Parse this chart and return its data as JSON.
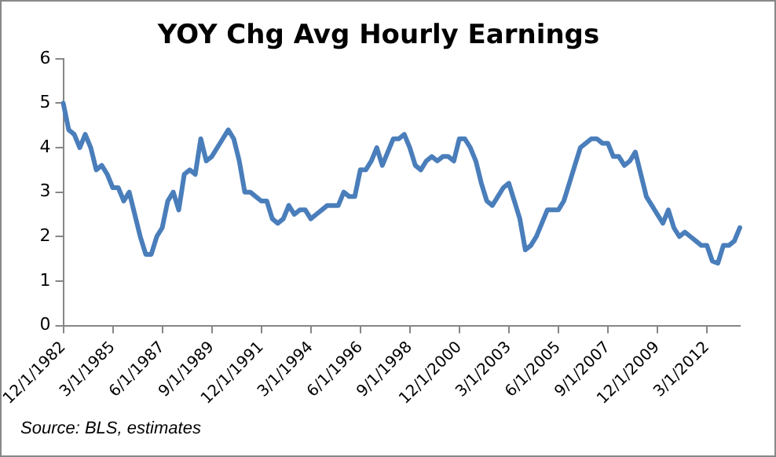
{
  "chart_data": {
    "type": "line",
    "title": "YOY Chg Avg Hourly Earnings",
    "categories": [
      "12/1/1982",
      null,
      null,
      null,
      null,
      null,
      null,
      null,
      null,
      "3/1/1985",
      null,
      null,
      null,
      null,
      null,
      null,
      null,
      null,
      "6/1/1987",
      null,
      null,
      null,
      null,
      null,
      null,
      null,
      null,
      "9/1/1989",
      null,
      null,
      null,
      null,
      null,
      null,
      null,
      null,
      "12/1/1991",
      null,
      null,
      null,
      null,
      null,
      null,
      null,
      null,
      "3/1/1994",
      null,
      null,
      null,
      null,
      null,
      null,
      null,
      null,
      "6/1/1996",
      null,
      null,
      null,
      null,
      null,
      null,
      null,
      null,
      "9/1/1998",
      null,
      null,
      null,
      null,
      null,
      null,
      null,
      null,
      "12/1/2000",
      null,
      null,
      null,
      null,
      null,
      null,
      null,
      null,
      "3/1/2003",
      null,
      null,
      null,
      null,
      null,
      null,
      null,
      null,
      "6/1/2005",
      null,
      null,
      null,
      null,
      null,
      null,
      null,
      null,
      "9/1/2007",
      null,
      null,
      null,
      null,
      null,
      null,
      null,
      null,
      "12/1/2009",
      null,
      null,
      null,
      null,
      null,
      null,
      null,
      null,
      "3/1/2012",
      null,
      null,
      null,
      null,
      null,
      null
    ],
    "series": [
      {
        "color": "#4a7ebb",
        "values": [
          5.0,
          4.4,
          4.3,
          4.0,
          4.3,
          4.0,
          3.5,
          3.6,
          3.4,
          3.1,
          3.1,
          2.8,
          3.0,
          2.5,
          2.0,
          1.6,
          1.6,
          2.0,
          2.2,
          2.8,
          3.0,
          2.6,
          3.4,
          3.5,
          3.4,
          4.2,
          3.7,
          3.8,
          4.0,
          4.2,
          4.4,
          4.2,
          3.7,
          3.0,
          3.0,
          2.9,
          2.8,
          2.8,
          2.4,
          2.3,
          2.4,
          2.7,
          2.5,
          2.6,
          2.6,
          2.4,
          2.5,
          2.6,
          2.7,
          2.7,
          2.7,
          3.0,
          2.9,
          2.9,
          3.5,
          3.5,
          3.7,
          4.0,
          3.6,
          3.9,
          4.2,
          4.2,
          4.3,
          4.0,
          3.6,
          3.5,
          3.7,
          3.8,
          3.7,
          3.8,
          3.8,
          3.7,
          4.2,
          4.2,
          4.0,
          3.7,
          3.2,
          2.8,
          2.7,
          2.9,
          3.1,
          3.2,
          2.8,
          2.4,
          1.7,
          1.8,
          2.0,
          2.3,
          2.6,
          2.6,
          2.6,
          2.8,
          3.2,
          3.6,
          4.0,
          4.1,
          4.2,
          4.2,
          4.1,
          4.1,
          3.8,
          3.8,
          3.6,
          3.7,
          3.9,
          3.4,
          2.9,
          2.7,
          2.5,
          2.3,
          2.6,
          2.2,
          2.0,
          2.1,
          2.0,
          1.9,
          1.8,
          1.8,
          1.45,
          1.4,
          1.8,
          1.8,
          1.9,
          2.2
        ]
      }
    ],
    "ylim": [
      0,
      6
    ],
    "yticks": [
      0,
      1,
      2,
      3,
      4,
      5,
      6
    ],
    "grid": false,
    "legend": false,
    "marker": "none",
    "line_style": "solid",
    "annotations": [
      "Source: BLS, estimates"
    ]
  }
}
